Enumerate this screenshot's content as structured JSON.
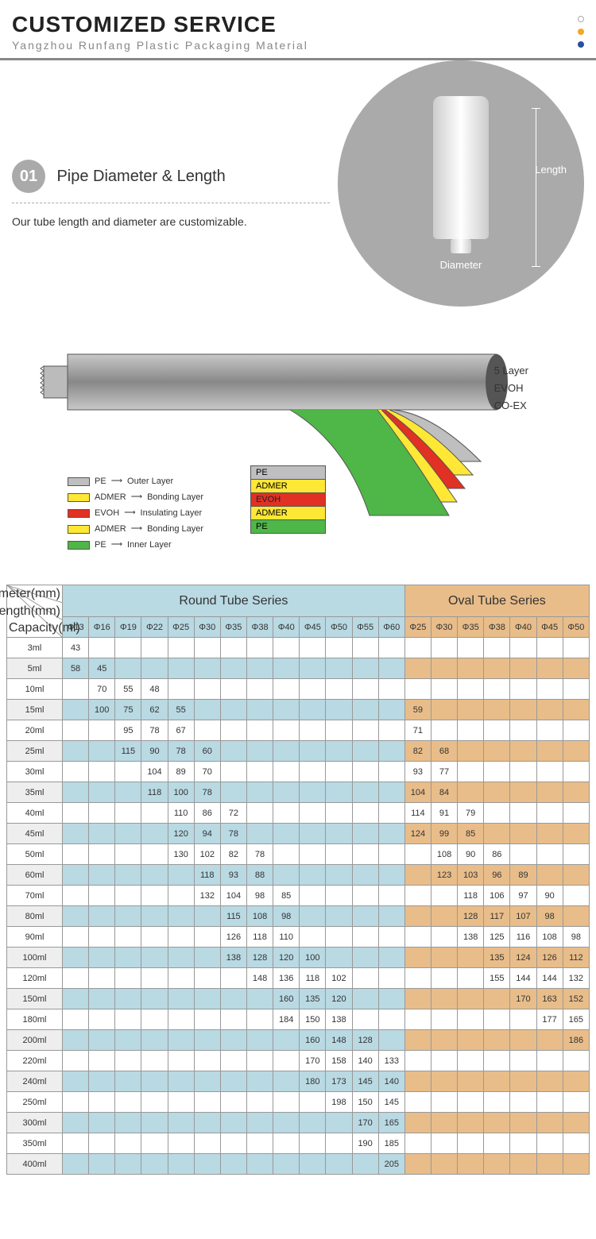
{
  "header": {
    "title": "CUSTOMIZED SERVICE",
    "sub": "Yangzhou Runfang Plastic Packaging Material"
  },
  "dots": [
    "#ccc",
    "#f5a623",
    "#2b4ea0"
  ],
  "section1": {
    "num": "01",
    "title": "Pipe Diameter & Length",
    "desc": "Our tube length and diameter are customizable.",
    "diam": "Diameter",
    "len": "Length"
  },
  "layers": {
    "right": [
      "5 Layer",
      "EVOH",
      "CO-EX"
    ],
    "legend": [
      {
        "c": "#bfbfbf",
        "n": "PE",
        "d": "Outer Layer"
      },
      {
        "c": "#ffe736",
        "n": "ADMER",
        "d": "Bonding Layer"
      },
      {
        "c": "#e13024",
        "n": "EVOH",
        "d": "Insulating Layer"
      },
      {
        "c": "#ffe736",
        "n": "ADMER",
        "d": "Bonding Layer"
      },
      {
        "c": "#4fb648",
        "n": "PE",
        "d": "Inner Layer"
      }
    ],
    "stack": [
      {
        "c": "#bfbfbf",
        "n": "PE"
      },
      {
        "c": "#ffe736",
        "n": "ADMER"
      },
      {
        "c": "#e13024",
        "n": "EVOH",
        "tc": "#222"
      },
      {
        "c": "#ffe736",
        "n": "ADMER"
      },
      {
        "c": "#4fb648",
        "n": "PE"
      }
    ]
  },
  "table": {
    "groups": [
      "Round Tube Series",
      "Oval Tube Series"
    ],
    "roundCols": [
      "Φ13",
      "Φ16",
      "Φ19",
      "Φ22",
      "Φ25",
      "Φ30",
      "Φ35",
      "Φ38",
      "Φ40",
      "Φ45",
      "Φ50",
      "Φ55",
      "Φ60"
    ],
    "ovalCols": [
      "Φ25",
      "Φ30",
      "Φ35",
      "Φ38",
      "Φ40",
      "Φ45",
      "Φ50"
    ],
    "cornerLabels": [
      "Diameter(mm)",
      "Length(mm)",
      "Capacity(ml)"
    ],
    "rows": [
      {
        "cap": "3ml",
        "r": [
          "43",
          "",
          "",
          "",
          "",
          "",
          "",
          "",
          "",
          "",
          "",
          "",
          ""
        ],
        "o": [
          "",
          "",
          "",
          "",
          "",
          "",
          ""
        ]
      },
      {
        "cap": "5ml",
        "r": [
          "58",
          "45",
          "",
          "",
          "",
          "",
          "",
          "",
          "",
          "",
          "",
          "",
          ""
        ],
        "o": [
          "",
          "",
          "",
          "",
          "",
          "",
          ""
        ],
        "alt": 1
      },
      {
        "cap": "10ml",
        "r": [
          "",
          "70",
          "55",
          "48",
          "",
          "",
          "",
          "",
          "",
          "",
          "",
          "",
          ""
        ],
        "o": [
          "",
          "",
          "",
          "",
          "",
          "",
          ""
        ]
      },
      {
        "cap": "15ml",
        "r": [
          "",
          "100",
          "75",
          "62",
          "55",
          "",
          "",
          "",
          "",
          "",
          "",
          "",
          ""
        ],
        "o": [
          "59",
          "",
          "",
          "",
          "",
          "",
          ""
        ],
        "alt": 1
      },
      {
        "cap": "20ml",
        "r": [
          "",
          "",
          "95",
          "78",
          "67",
          "",
          "",
          "",
          "",
          "",
          "",
          "",
          ""
        ],
        "o": [
          "71",
          "",
          "",
          "",
          "",
          "",
          ""
        ]
      },
      {
        "cap": "25ml",
        "r": [
          "",
          "",
          "115",
          "90",
          "78",
          "60",
          "",
          "",
          "",
          "",
          "",
          "",
          ""
        ],
        "o": [
          "82",
          "68",
          "",
          "",
          "",
          "",
          ""
        ],
        "alt": 1
      },
      {
        "cap": "30ml",
        "r": [
          "",
          "",
          "",
          "104",
          "89",
          "70",
          "",
          "",
          "",
          "",
          "",
          "",
          ""
        ],
        "o": [
          "93",
          "77",
          "",
          "",
          "",
          "",
          ""
        ]
      },
      {
        "cap": "35ml",
        "r": [
          "",
          "",
          "",
          "118",
          "100",
          "78",
          "",
          "",
          "",
          "",
          "",
          "",
          ""
        ],
        "o": [
          "104",
          "84",
          "",
          "",
          "",
          "",
          ""
        ],
        "alt": 1
      },
      {
        "cap": "40ml",
        "r": [
          "",
          "",
          "",
          "",
          "110",
          "86",
          "72",
          "",
          "",
          "",
          "",
          "",
          ""
        ],
        "o": [
          "114",
          "91",
          "79",
          "",
          "",
          "",
          ""
        ]
      },
      {
        "cap": "45ml",
        "r": [
          "",
          "",
          "",
          "",
          "120",
          "94",
          "78",
          "",
          "",
          "",
          "",
          "",
          ""
        ],
        "o": [
          "124",
          "99",
          "85",
          "",
          "",
          "",
          ""
        ],
        "alt": 1
      },
      {
        "cap": "50ml",
        "r": [
          "",
          "",
          "",
          "",
          "130",
          "102",
          "82",
          "78",
          "",
          "",
          "",
          "",
          ""
        ],
        "o": [
          "",
          "108",
          "90",
          "86",
          "",
          "",
          ""
        ]
      },
      {
        "cap": "60ml",
        "r": [
          "",
          "",
          "",
          "",
          "",
          "118",
          "93",
          "88",
          "",
          "",
          "",
          "",
          ""
        ],
        "o": [
          "",
          "123",
          "103",
          "96",
          "89",
          "",
          ""
        ],
        "alt": 1
      },
      {
        "cap": "70ml",
        "r": [
          "",
          "",
          "",
          "",
          "",
          "132",
          "104",
          "98",
          "85",
          "",
          "",
          "",
          ""
        ],
        "o": [
          "",
          "",
          "118",
          "106",
          "97",
          "90",
          ""
        ]
      },
      {
        "cap": "80ml",
        "r": [
          "",
          "",
          "",
          "",
          "",
          "",
          "115",
          "108",
          "98",
          "",
          "",
          "",
          ""
        ],
        "o": [
          "",
          "",
          "128",
          "117",
          "107",
          "98",
          ""
        ],
        "alt": 1
      },
      {
        "cap": "90ml",
        "r": [
          "",
          "",
          "",
          "",
          "",
          "",
          "126",
          "118",
          "110",
          "",
          "",
          "",
          ""
        ],
        "o": [
          "",
          "",
          "138",
          "125",
          "116",
          "108",
          "98"
        ]
      },
      {
        "cap": "100ml",
        "r": [
          "",
          "",
          "",
          "",
          "",
          "",
          "138",
          "128",
          "120",
          "100",
          "",
          "",
          ""
        ],
        "o": [
          "",
          "",
          "",
          "135",
          "124",
          "126",
          "112"
        ],
        "alt": 1
      },
      {
        "cap": "120ml",
        "r": [
          "",
          "",
          "",
          "",
          "",
          "",
          "",
          "148",
          "136",
          "118",
          "102",
          "",
          ""
        ],
        "o": [
          "",
          "",
          "",
          "155",
          "144",
          "144",
          "132"
        ]
      },
      {
        "cap": "150ml",
        "r": [
          "",
          "",
          "",
          "",
          "",
          "",
          "",
          "",
          "160",
          "135",
          "120",
          "",
          ""
        ],
        "o": [
          "",
          "",
          "",
          "",
          "170",
          "163",
          "152"
        ],
        "alt": 1
      },
      {
        "cap": "180ml",
        "r": [
          "",
          "",
          "",
          "",
          "",
          "",
          "",
          "",
          "184",
          "150",
          "138",
          "",
          ""
        ],
        "o": [
          "",
          "",
          "",
          "",
          "",
          "177",
          "165"
        ]
      },
      {
        "cap": "200ml",
        "r": [
          "",
          "",
          "",
          "",
          "",
          "",
          "",
          "",
          "",
          "160",
          "148",
          "128",
          ""
        ],
        "o": [
          "",
          "",
          "",
          "",
          "",
          "",
          "186"
        ],
        "alt": 1
      },
      {
        "cap": "220ml",
        "r": [
          "",
          "",
          "",
          "",
          "",
          "",
          "",
          "",
          "",
          "170",
          "158",
          "140",
          "133"
        ],
        "o": [
          "",
          "",
          "",
          "",
          "",
          "",
          ""
        ]
      },
      {
        "cap": "240ml",
        "r": [
          "",
          "",
          "",
          "",
          "",
          "",
          "",
          "",
          "",
          "180",
          "173",
          "145",
          "140"
        ],
        "o": [
          "",
          "",
          "",
          "",
          "",
          "",
          ""
        ],
        "alt": 1
      },
      {
        "cap": "250ml",
        "r": [
          "",
          "",
          "",
          "",
          "",
          "",
          "",
          "",
          "",
          "",
          "198",
          "150",
          "145"
        ],
        "o": [
          "",
          "",
          "",
          "",
          "",
          "",
          ""
        ]
      },
      {
        "cap": "300ml",
        "r": [
          "",
          "",
          "",
          "",
          "",
          "",
          "",
          "",
          "",
          "",
          "",
          "170",
          "165"
        ],
        "o": [
          "",
          "",
          "",
          "",
          "",
          "",
          ""
        ],
        "alt": 1
      },
      {
        "cap": "350ml",
        "r": [
          "",
          "",
          "",
          "",
          "",
          "",
          "",
          "",
          "",
          "",
          "",
          "190",
          "185"
        ],
        "o": [
          "",
          "",
          "",
          "",
          "",
          "",
          ""
        ]
      },
      {
        "cap": "400ml",
        "r": [
          "",
          "",
          "",
          "",
          "",
          "",
          "",
          "",
          "",
          "",
          "",
          "",
          "205"
        ],
        "o": [
          "",
          "",
          "",
          "",
          "",
          "",
          ""
        ],
        "alt": 1
      }
    ]
  }
}
